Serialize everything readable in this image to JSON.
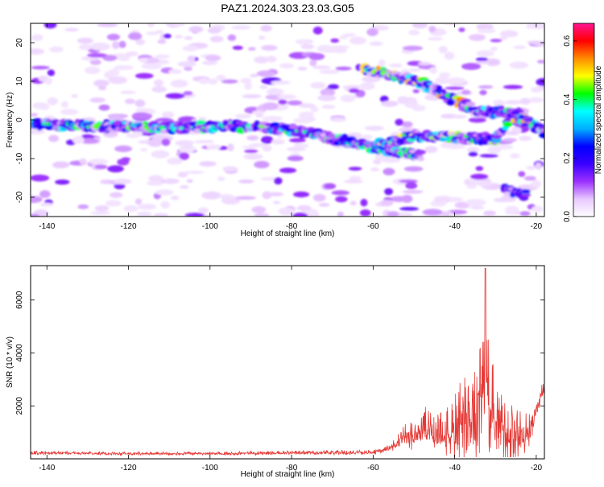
{
  "title": "PAZ1.2024.303.23.03.G05",
  "chart_data": [
    {
      "type": "heatmap",
      "xlabel": "Height of straight line (km)",
      "ylabel": "Frequency (Hz)",
      "xlim": [
        -144,
        -18
      ],
      "ylim": [
        -25,
        25
      ],
      "xticks": [
        -140,
        -120,
        -100,
        -80,
        -60,
        -40,
        -20
      ],
      "yticks": [
        -20,
        -10,
        0,
        10,
        20
      ],
      "colorbar": {
        "label": "Normalized spectral amplitude",
        "range": [
          0.0,
          0.66
        ],
        "ticks": [
          0.0,
          0.2,
          0.4,
          0.6
        ],
        "colormap": [
          "#ffffff",
          "#e8c8ff",
          "#9b30ff",
          "#3a00ff",
          "#0000ff",
          "#00b0ff",
          "#00ffff",
          "#00ff00",
          "#ffff00",
          "#ff8c00",
          "#ff0000",
          "#ff1493"
        ]
      },
      "features": [
        {
          "name": "main-track",
          "points": [
            [
              -144,
              -1
            ],
            [
              -130,
              -1.5
            ],
            [
              -110,
              -2
            ],
            [
              -95,
              -1.5
            ],
            [
              -85,
              -2
            ],
            [
              -75,
              -3.5
            ],
            [
              -65,
              -6
            ],
            [
              -55,
              -8
            ],
            [
              -48,
              -9
            ]
          ],
          "peak": 0.45
        },
        {
          "name": "lower-branch",
          "points": [
            [
              -60,
              -7
            ],
            [
              -50,
              -4
            ],
            [
              -40,
              -4.5
            ],
            [
              -30,
              -5
            ],
            [
              -25,
              2
            ],
            [
              -18,
              -3
            ]
          ],
          "peak": 0.5
        },
        {
          "name": "upper-branch",
          "points": [
            [
              -62,
              13
            ],
            [
              -55,
              11.5
            ],
            [
              -48,
              9.5
            ],
            [
              -40,
              5
            ],
            [
              -33,
              2
            ],
            [
              -27,
              2
            ],
            [
              -22,
              -1
            ],
            [
              -18,
              -3
            ]
          ],
          "peak": 0.55
        },
        {
          "name": "lower-tail",
          "points": [
            [
              -28,
              -18
            ],
            [
              -22,
              -19.5
            ]
          ],
          "peak": 0.3
        }
      ]
    },
    {
      "type": "line",
      "xlabel": "Height of straight line (km)",
      "ylabel": "SNR (10 * v/v)",
      "xlim": [
        -144,
        -18
      ],
      "ylim": [
        0,
        7300
      ],
      "xticks": [
        -140,
        -120,
        -100,
        -80,
        -60,
        -40,
        -20
      ],
      "yticks": [
        2000,
        4000,
        6000
      ],
      "series": [
        {
          "color": "#e53935",
          "envelope": [
            {
              "x": -144,
              "base": 200,
              "amp": 150
            },
            {
              "x": -110,
              "base": 180,
              "amp": 120
            },
            {
              "x": -60,
              "base": 220,
              "amp": 180
            },
            {
              "x": -56,
              "base": 350,
              "amp": 300
            },
            {
              "x": -52,
              "base": 700,
              "amp": 1000
            },
            {
              "x": -47,
              "base": 900,
              "amp": 1700
            },
            {
              "x": -42,
              "base": 700,
              "amp": 1800
            },
            {
              "x": -38,
              "base": 900,
              "amp": 3400
            },
            {
              "x": -35,
              "base": 1100,
              "amp": 3600
            },
            {
              "x": -32.5,
              "base": 2000,
              "amp": 5200
            },
            {
              "x": -30,
              "base": 900,
              "amp": 3300
            },
            {
              "x": -26,
              "base": 600,
              "amp": 2300
            },
            {
              "x": -22,
              "base": 800,
              "amp": 1400
            },
            {
              "x": -18,
              "base": 2600,
              "amp": 900
            }
          ],
          "peak": {
            "x": -32.5,
            "y": 7200
          }
        }
      ]
    }
  ]
}
